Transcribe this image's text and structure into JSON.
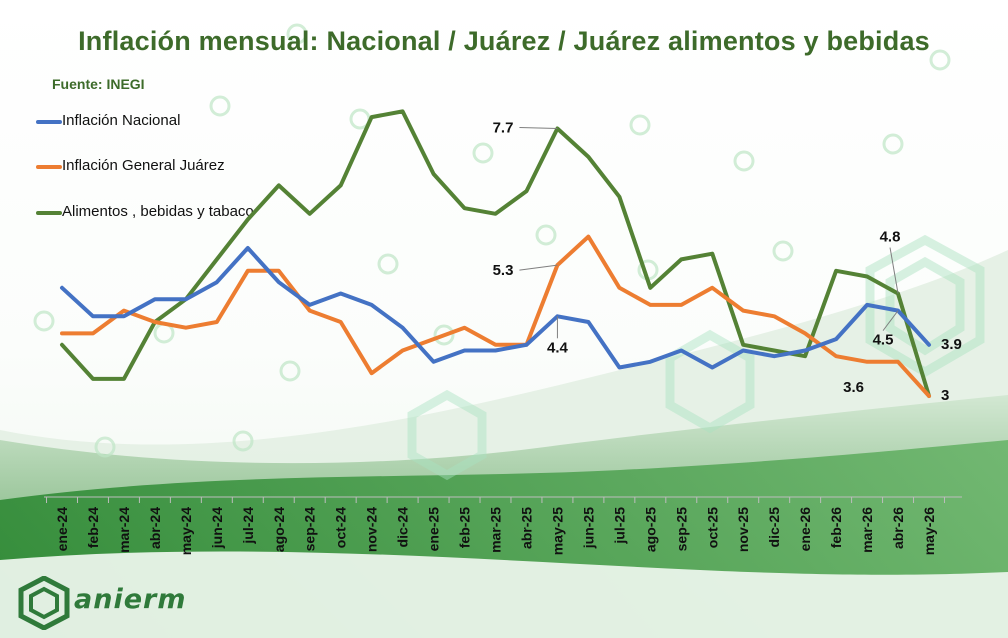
{
  "title": "Inflación mensual: Nacional / Juárez / Juárez alimentos y bebidas",
  "source": "Fuente: INEGI",
  "colors": {
    "title": "#3d6b2a",
    "nacional": "#4472c4",
    "juarez": "#ed7d31",
    "alimentos": "#548235"
  },
  "logo": {
    "icon": "hexagon-logo-icon"
  },
  "chart_data": {
    "type": "line",
    "title": "Inflación mensual: Nacional / Juárez / Juárez alimentos y bebidas",
    "xlabel": "",
    "ylabel": "",
    "categories": [
      "ene-24",
      "feb-24",
      "mar-24",
      "abr-24",
      "may-24",
      "jun-24",
      "jul-24",
      "ago-24",
      "sep-24",
      "oct-24",
      "nov-24",
      "dic-24",
      "ene-25",
      "feb-25",
      "mar-25",
      "abr-25",
      "may-25",
      "jun-25",
      "jul-25",
      "ago-25",
      "sep-25",
      "oct-25",
      "nov-25",
      "dic-25",
      "ene-26",
      "feb-26",
      "mar-26",
      "abr-26",
      "may-26"
    ],
    "ylim": [
      1.7,
      8.2
    ],
    "grid": false,
    "legend_position": "top-left",
    "series": [
      {
        "name": "Inflación Nacional",
        "color": "#4472c4",
        "values": [
          4.9,
          4.4,
          4.4,
          4.7,
          4.7,
          5.0,
          5.6,
          5.0,
          4.6,
          4.8,
          4.6,
          4.2,
          3.6,
          3.8,
          3.8,
          3.9,
          4.4,
          4.3,
          3.5,
          3.6,
          3.8,
          3.5,
          3.8,
          3.7,
          3.8,
          4.0,
          4.6,
          4.5,
          3.9
        ]
      },
      {
        "name": "Inflación General Juárez",
        "color": "#ed7d31",
        "values": [
          4.1,
          4.1,
          4.5,
          4.3,
          4.2,
          4.3,
          5.2,
          5.2,
          4.5,
          4.3,
          3.4,
          3.8,
          4.0,
          4.2,
          3.9,
          3.9,
          5.3,
          5.8,
          4.9,
          4.6,
          4.6,
          4.9,
          4.5,
          4.4,
          4.1,
          3.7,
          3.6,
          3.6,
          3.0
        ]
      },
      {
        "name": "Alimentos , bebidas y tabaco",
        "color": "#548235",
        "values": [
          3.9,
          3.3,
          3.3,
          4.3,
          4.7,
          5.4,
          6.1,
          6.7,
          6.2,
          6.7,
          7.9,
          8.0,
          6.9,
          6.3,
          6.2,
          6.6,
          7.7,
          7.2,
          6.5,
          4.9,
          5.4,
          5.5,
          3.9,
          3.8,
          3.7,
          5.2,
          5.1,
          4.8,
          3.0
        ]
      }
    ],
    "annotations": [
      {
        "series": 2,
        "index": 16,
        "text": "7.7"
      },
      {
        "series": 1,
        "index": 16,
        "text": "5.3"
      },
      {
        "series": 0,
        "index": 16,
        "text": "4.4"
      },
      {
        "series": 2,
        "index": 27,
        "text": "4.8"
      },
      {
        "series": 0,
        "index": 27,
        "text": "4.5"
      },
      {
        "series": 0,
        "index": 28,
        "text": "3.9"
      },
      {
        "series": 1,
        "index": 27,
        "text": "3.6"
      },
      {
        "series": 1,
        "index": 28,
        "text": "3"
      }
    ]
  }
}
